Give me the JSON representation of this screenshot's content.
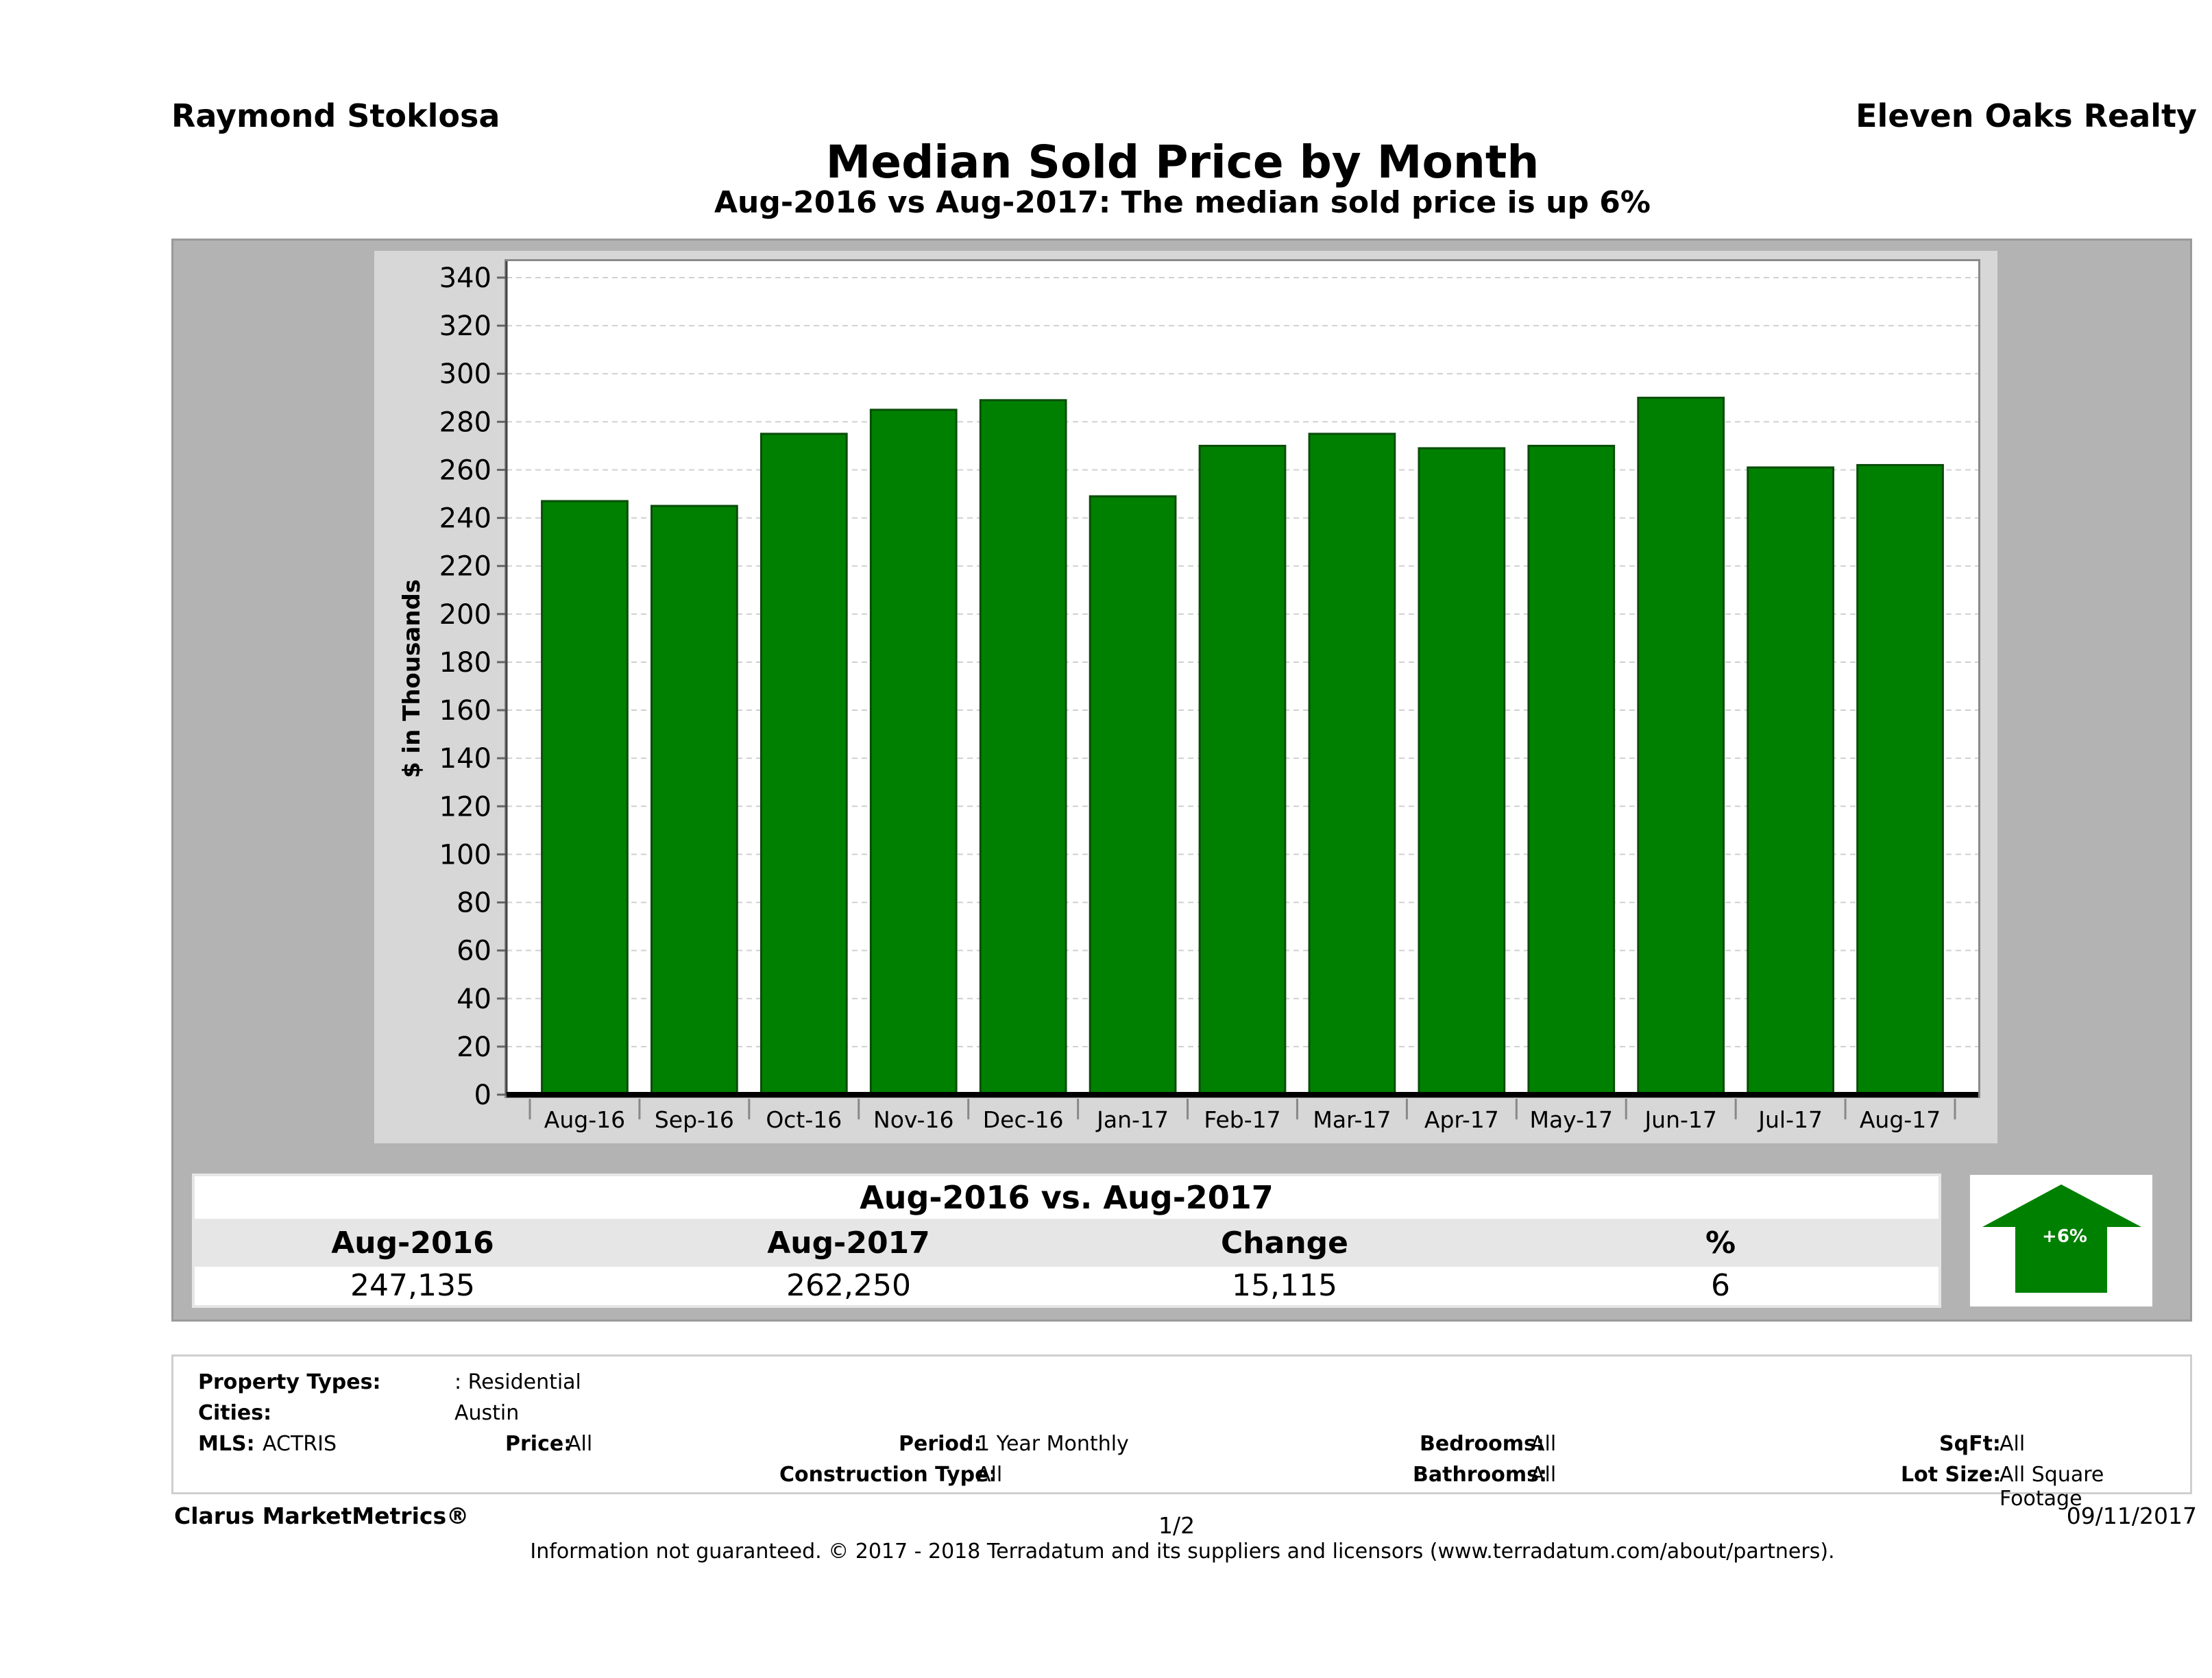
{
  "header": {
    "agent": "Raymond Stoklosa",
    "company": "Eleven Oaks Realty",
    "title": "Median Sold Price by Month",
    "subtitle": "Aug-2016 vs Aug-2017: The median sold price is up 6%"
  },
  "chart_data": {
    "type": "bar",
    "categories": [
      "Aug-16",
      "Sep-16",
      "Oct-16",
      "Nov-16",
      "Dec-16",
      "Jan-17",
      "Feb-17",
      "Mar-17",
      "Apr-17",
      "May-17",
      "Jun-17",
      "Jul-17",
      "Aug-17"
    ],
    "values": [
      247,
      245,
      275,
      285,
      289,
      249,
      270,
      275,
      269,
      270,
      290,
      261,
      262
    ],
    "ylabel": "$ in Thousands",
    "xlabel": "",
    "ylim": [
      0,
      340
    ],
    "yticks": [
      0,
      20,
      40,
      60,
      80,
      100,
      120,
      140,
      160,
      180,
      200,
      220,
      240,
      260,
      280,
      300,
      320,
      340
    ],
    "grid": true,
    "bar_color": "#008000"
  },
  "comparison": {
    "title": "Aug-2016 vs. Aug-2017",
    "headers": [
      "Aug-2016",
      "Aug-2017",
      "Change",
      "%"
    ],
    "values": [
      "247,135",
      "262,250",
      "15,115",
      "6"
    ],
    "badge": "+6%",
    "badge_color": "#008000"
  },
  "filters": {
    "property_types_label": "Property Types:",
    "property_types_value": ": Residential",
    "cities_label": "Cities:",
    "cities_value": "Austin",
    "mls_label": "MLS:",
    "mls_value": "ACTRIS",
    "price_label": "Price:",
    "price_value": "All",
    "period_label": "Period:",
    "period_value": "1 Year Monthly",
    "bedrooms_label": "Bedrooms:",
    "bedrooms_value": "All",
    "sqft_label": "SqFt:",
    "sqft_value": "All",
    "construction_label": "Construction Type:",
    "construction_value": "All",
    "bathrooms_label": "Bathrooms:",
    "bathrooms_value": "All",
    "lotsize_label": "Lot Size:",
    "lotsize_value": "All Square Footage"
  },
  "footer": {
    "brand": "Clarus MarketMetrics®",
    "page": "1/2",
    "date": "09/11/2017",
    "disclaimer": "Information not guaranteed. © 2017 - 2018 Terradatum and its suppliers and licensors (www.terradatum.com/about/partners)."
  }
}
